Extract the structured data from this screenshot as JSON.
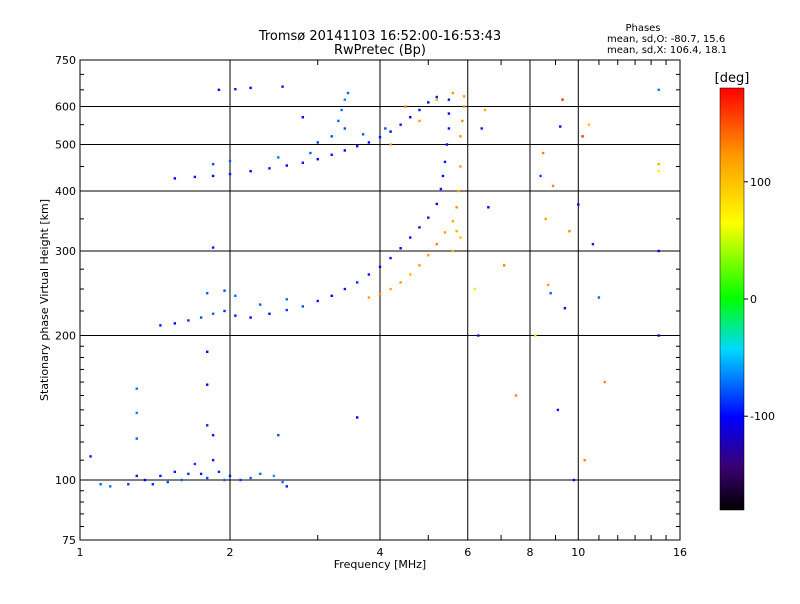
{
  "header": {
    "title_line1": "Tromsø 20141103 16:52:00-16:53:43",
    "title_line2": "RwPretec (Bp)",
    "phase_heading": "Phases",
    "phase_line_o": "mean, sd,O: -80.7, 15.6",
    "phase_line_x": "mean, sd,X: 106.4, 18.1"
  },
  "chart_data": {
    "type": "scatter",
    "title": "Tromsø 20141103 16:52:00-16:53:43",
    "subtitle": "RwPretec (Bp)",
    "xlabel": "Frequency [MHz]",
    "ylabel": "Stationary phase Virtual Height [km]",
    "x_scale": "log",
    "y_scale": "log",
    "xlim": [
      1,
      16
    ],
    "ylim": [
      75,
      750
    ],
    "x_ticks": [
      1,
      2,
      4,
      6,
      8,
      10,
      16
    ],
    "x_tick_labels": [
      "1",
      "2",
      "4",
      "6",
      "8",
      "10",
      "16"
    ],
    "y_ticks": [
      75,
      100,
      200,
      300,
      400,
      500,
      600,
      750
    ],
    "y_tick_labels": [
      "75",
      "100",
      "200",
      "300",
      "400",
      "500",
      "600",
      "750"
    ],
    "grid": true,
    "colorbar": {
      "label": "[deg]",
      "min": -180,
      "max": 180,
      "ticks": [
        100,
        0,
        -100
      ],
      "tick_labels": [
        "100",
        "0",
        "-100"
      ]
    },
    "series": [
      {
        "points": [
          [
            1.05,
            112,
            -95
          ],
          [
            1.1,
            98,
            -75
          ],
          [
            1.15,
            97,
            -70
          ],
          [
            1.25,
            98,
            -85
          ],
          [
            1.3,
            102,
            -95
          ],
          [
            1.35,
            100,
            -100
          ],
          [
            1.4,
            98,
            -90
          ],
          [
            1.45,
            102,
            -95
          ],
          [
            1.5,
            99,
            -80
          ],
          [
            1.55,
            104,
            -95
          ],
          [
            1.6,
            100,
            -75
          ],
          [
            1.65,
            103,
            -90
          ],
          [
            1.7,
            108,
            -85
          ],
          [
            1.75,
            103,
            -95
          ],
          [
            1.8,
            101,
            -80
          ],
          [
            1.85,
            110,
            -95
          ],
          [
            1.9,
            104,
            -90
          ],
          [
            1.95,
            100,
            -75
          ],
          [
            2.0,
            102,
            -95
          ],
          [
            2.1,
            100,
            -85
          ],
          [
            2.2,
            101,
            -75
          ],
          [
            2.3,
            103,
            -70
          ],
          [
            2.45,
            102,
            -60
          ],
          [
            2.55,
            99,
            -70
          ],
          [
            2.6,
            97,
            -95
          ],
          [
            1.3,
            155,
            -70
          ],
          [
            1.3,
            138,
            -65
          ],
          [
            1.3,
            122,
            -75
          ],
          [
            1.8,
            185,
            -100
          ],
          [
            1.8,
            158,
            -100
          ],
          [
            1.8,
            130,
            -90
          ],
          [
            1.85,
            124,
            -95
          ],
          [
            2.5,
            124,
            -80
          ],
          [
            3.6,
            135,
            -100
          ],
          [
            1.45,
            210,
            -95
          ],
          [
            1.55,
            212,
            -100
          ],
          [
            1.65,
            215,
            -90
          ],
          [
            1.75,
            218,
            -80
          ],
          [
            1.85,
            222,
            -75
          ],
          [
            1.95,
            225,
            -90
          ],
          [
            2.05,
            220,
            -95
          ],
          [
            2.2,
            218,
            -100
          ],
          [
            2.4,
            222,
            -95
          ],
          [
            2.6,
            226,
            -85
          ],
          [
            2.8,
            230,
            -80
          ],
          [
            3.0,
            236,
            -95
          ],
          [
            3.2,
            242,
            -100
          ],
          [
            3.4,
            250,
            -95
          ],
          [
            3.6,
            258,
            -90
          ],
          [
            3.8,
            268,
            -95
          ],
          [
            4.0,
            278,
            -100
          ],
          [
            4.2,
            290,
            -95
          ],
          [
            4.4,
            304,
            -100
          ],
          [
            4.6,
            320,
            -95
          ],
          [
            4.8,
            336,
            -100
          ],
          [
            5.0,
            352,
            -95
          ],
          [
            5.2,
            376,
            -100
          ],
          [
            5.3,
            404,
            -95
          ],
          [
            5.35,
            430,
            -100
          ],
          [
            5.4,
            460,
            -95
          ],
          [
            5.45,
            500,
            -100
          ],
          [
            5.5,
            540,
            -95
          ],
          [
            5.5,
            580,
            -100
          ],
          [
            5.5,
            620,
            -95
          ],
          [
            1.8,
            245,
            -75
          ],
          [
            1.95,
            248,
            -80
          ],
          [
            2.05,
            242,
            -70
          ],
          [
            2.3,
            232,
            -75
          ],
          [
            2.6,
            238,
            -70
          ],
          [
            1.85,
            305,
            -95
          ],
          [
            3.8,
            240,
            120
          ],
          [
            4.0,
            244,
            130
          ],
          [
            4.2,
            250,
            110
          ],
          [
            4.4,
            258,
            120
          ],
          [
            4.6,
            268,
            100
          ],
          [
            4.8,
            280,
            125
          ],
          [
            5.0,
            294,
            115
          ],
          [
            5.2,
            310,
            130
          ],
          [
            5.4,
            328,
            120
          ],
          [
            5.6,
            346,
            110
          ],
          [
            5.7,
            370,
            125
          ],
          [
            5.75,
            400,
            115
          ],
          [
            5.8,
            450,
            120
          ],
          [
            5.8,
            520,
            125
          ],
          [
            5.85,
            560,
            130
          ],
          [
            5.9,
            600,
            125
          ],
          [
            5.9,
            630,
            120
          ],
          [
            5.6,
            300,
            105
          ],
          [
            5.7,
            330,
            110
          ],
          [
            5.8,
            320,
            100
          ],
          [
            1.55,
            425,
            -100
          ],
          [
            1.7,
            428,
            -95
          ],
          [
            1.85,
            430,
            -100
          ],
          [
            2.0,
            434,
            -95
          ],
          [
            2.2,
            440,
            -100
          ],
          [
            2.4,
            446,
            -95
          ],
          [
            2.6,
            452,
            -100
          ],
          [
            2.8,
            458,
            -95
          ],
          [
            3.0,
            466,
            -100
          ],
          [
            3.2,
            476,
            -95
          ],
          [
            3.4,
            486,
            -100
          ],
          [
            3.6,
            496,
            -95
          ],
          [
            3.8,
            505,
            -100
          ],
          [
            4.0,
            518,
            -95
          ],
          [
            4.2,
            532,
            -100
          ],
          [
            4.4,
            550,
            -95
          ],
          [
            4.6,
            570,
            -100
          ],
          [
            4.8,
            590,
            -95
          ],
          [
            5.0,
            612,
            -100
          ],
          [
            5.2,
            628,
            -95
          ],
          [
            1.85,
            455,
            -80
          ],
          [
            2.0,
            462,
            -75
          ],
          [
            2.5,
            470,
            -70
          ],
          [
            2.9,
            480,
            -75
          ],
          [
            3.2,
            520,
            -80
          ],
          [
            3.3,
            560,
            -75
          ],
          [
            3.35,
            590,
            -70
          ],
          [
            3.4,
            620,
            -65
          ],
          [
            3.4,
            540,
            -80
          ],
          [
            3.0,
            505,
            -85
          ],
          [
            3.7,
            525,
            -75
          ],
          [
            4.1,
            540,
            -80
          ],
          [
            1.9,
            650,
            -100
          ],
          [
            2.05,
            652,
            -95
          ],
          [
            2.2,
            656,
            -100
          ],
          [
            2.55,
            660,
            -95
          ],
          [
            3.45,
            640,
            -75
          ],
          [
            2.8,
            570,
            -100
          ],
          [
            4.5,
            600,
            130
          ],
          [
            4.8,
            560,
            120
          ],
          [
            5.2,
            620,
            110
          ],
          [
            4.2,
            500,
            115
          ],
          [
            5.6,
            640,
            125
          ],
          [
            6.2,
            250,
            80
          ],
          [
            6.3,
            200,
            -95
          ],
          [
            6.5,
            590,
            110
          ],
          [
            6.4,
            540,
            -95
          ],
          [
            6.6,
            370,
            -100
          ],
          [
            7.1,
            280,
            130
          ],
          [
            7.5,
            150,
            130
          ],
          [
            8.2,
            200,
            45
          ],
          [
            8.4,
            430,
            -80
          ],
          [
            8.5,
            480,
            130
          ],
          [
            8.6,
            350,
            120
          ],
          [
            8.7,
            255,
            120
          ],
          [
            8.8,
            245,
            -75
          ],
          [
            8.9,
            410,
            130
          ],
          [
            9.1,
            140,
            -95
          ],
          [
            9.2,
            545,
            -100
          ],
          [
            9.3,
            620,
            160
          ],
          [
            9.4,
            228,
            -105
          ],
          [
            9.6,
            330,
            130
          ],
          [
            9.8,
            100,
            -100
          ],
          [
            10.0,
            375,
            -110
          ],
          [
            10.2,
            520,
            160
          ],
          [
            10.3,
            110,
            130
          ],
          [
            10.5,
            550,
            100
          ],
          [
            10.7,
            310,
            -95
          ],
          [
            11.0,
            240,
            -75
          ],
          [
            11.3,
            160,
            130
          ],
          [
            14.5,
            650,
            -70
          ],
          [
            14.5,
            300,
            -110
          ],
          [
            14.5,
            455,
            110
          ],
          [
            14.5,
            200,
            -115
          ],
          [
            14.5,
            440,
            70
          ]
        ]
      }
    ]
  }
}
